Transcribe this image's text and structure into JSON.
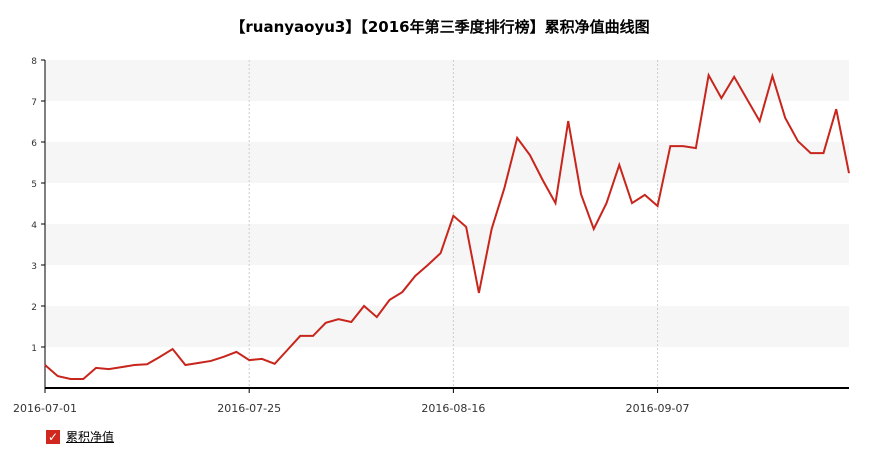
{
  "chart_data": {
    "type": "line",
    "title": "【ruanyaoyu3】【2016年第三季度排行榜】累积净值曲线图",
    "categories": [
      "2016-07-01",
      null,
      null,
      null,
      null,
      null,
      null,
      null,
      null,
      null,
      null,
      null,
      null,
      null,
      null,
      null,
      "2016-07-25",
      null,
      null,
      null,
      null,
      null,
      null,
      null,
      null,
      null,
      null,
      null,
      null,
      null,
      null,
      null,
      "2016-08-16",
      null,
      null,
      null,
      null,
      null,
      null,
      null,
      null,
      null,
      null,
      null,
      null,
      null,
      null,
      null,
      "2016-09-07",
      null,
      null,
      null,
      null,
      null,
      null,
      null,
      null,
      null,
      null,
      null,
      null,
      null,
      null,
      null
    ],
    "series": [
      {
        "name": "累积净值",
        "color": "#c8251c",
        "values": [
          0.56,
          0.29,
          0.22,
          0.22,
          0.49,
          0.46,
          0.51,
          0.56,
          0.58,
          0.76,
          0.95,
          0.56,
          0.61,
          0.66,
          0.76,
          0.88,
          0.68,
          0.71,
          0.59,
          0.93,
          1.27,
          1.27,
          1.59,
          1.68,
          1.61,
          2.0,
          1.73,
          2.15,
          2.34,
          2.73,
          3.0,
          3.29,
          4.2,
          3.93,
          2.32,
          3.88,
          4.88,
          6.1,
          5.68,
          5.07,
          4.51,
          6.51,
          4.73,
          3.88,
          4.51,
          5.44,
          4.51,
          4.71,
          4.44,
          5.9,
          5.9,
          5.85,
          7.63,
          7.07,
          7.59,
          7.05,
          6.51,
          7.61,
          6.59,
          6.02,
          5.73,
          5.73,
          6.8,
          5.24
        ]
      }
    ],
    "ylim": [
      0,
      8
    ],
    "yticks": [
      1,
      2,
      3,
      4,
      5,
      6,
      7,
      8
    ],
    "grid": true
  }
}
